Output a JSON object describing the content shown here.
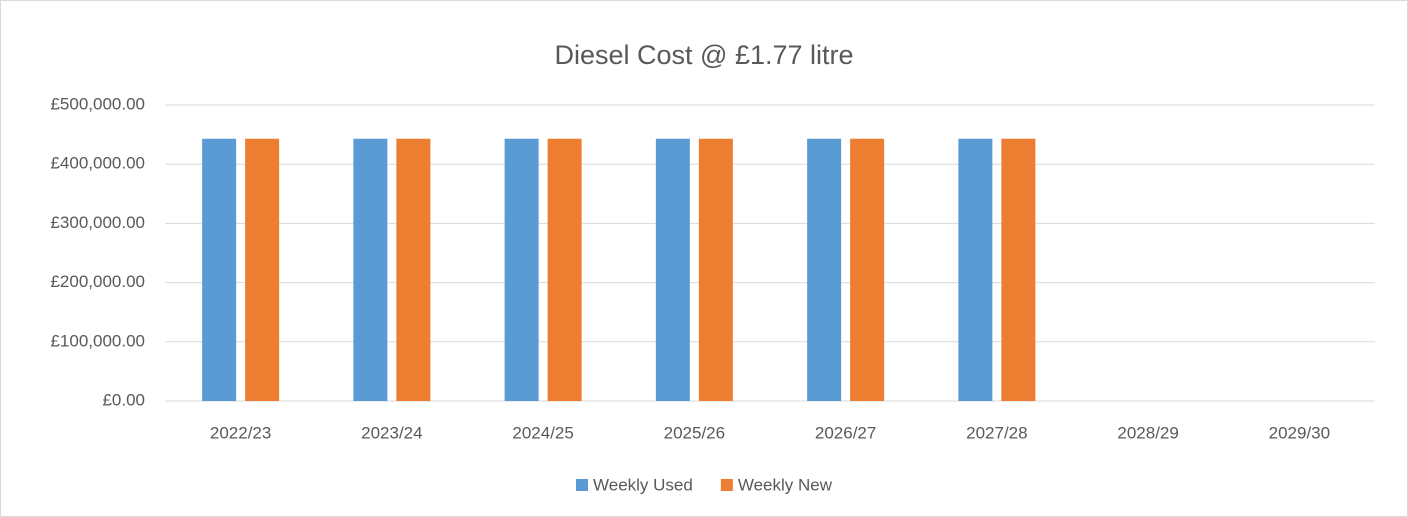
{
  "chart_data": {
    "type": "bar",
    "title": "Diesel Cost @ £1.77 litre",
    "categories": [
      "2022/23",
      "2023/24",
      "2024/25",
      "2025/26",
      "2026/27",
      "2027/28",
      "2028/29",
      "2029/30"
    ],
    "series": [
      {
        "name": "Weekly Used",
        "color": "#5b9bd5",
        "values": [
          443000,
          443000,
          443000,
          443000,
          443000,
          443000,
          null,
          null
        ]
      },
      {
        "name": "Weekly New",
        "color": "#ed7d31",
        "values": [
          443000,
          443000,
          443000,
          443000,
          443000,
          443000,
          null,
          null
        ]
      }
    ],
    "ylim": [
      0,
      500000
    ],
    "yticks": [
      {
        "value": 0,
        "label": "£0.00"
      },
      {
        "value": 100000,
        "label": "£100,000.00"
      },
      {
        "value": 200000,
        "label": "£200,000.00"
      },
      {
        "value": 300000,
        "label": "£300,000.00"
      },
      {
        "value": 400000,
        "label": "£400,000.00"
      },
      {
        "value": 500000,
        "label": "£500,000.00"
      }
    ],
    "grid": true,
    "legend": "bottom"
  }
}
